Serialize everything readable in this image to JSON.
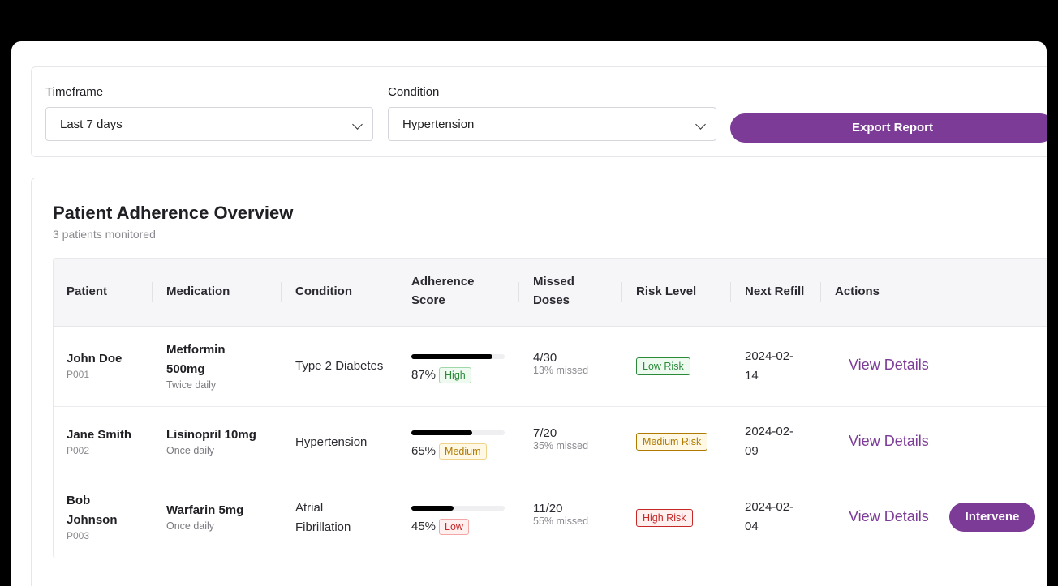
{
  "filters": {
    "timeframe_label": "Timeframe",
    "timeframe_value": "Last 7 days",
    "condition_label": "Condition",
    "condition_value": "Hypertension",
    "export_label": "Export Report"
  },
  "overview": {
    "title": "Patient Adherence Overview",
    "subtitle": "3 patients monitored"
  },
  "table": {
    "headers": {
      "patient": "Patient",
      "medication": "Medication",
      "condition": "Condition",
      "adherence_1": "Adherence",
      "adherence_2": "Score",
      "missed_1": "Missed",
      "missed_2": "Doses",
      "risk": "Risk Level",
      "refill": "Next Refill",
      "actions": "Actions"
    },
    "rows": [
      {
        "name_1": "John Doe",
        "name_2": "",
        "id": "P001",
        "med_1": "Metformin",
        "med_2": "500mg",
        "freq": "Twice daily",
        "cond_1": "Type 2 Diabetes",
        "cond_2": "",
        "score": "87%",
        "score_fraction": 0.87,
        "score_badge": "High",
        "missed": "4/30",
        "missed_sub": "13% missed",
        "risk": "Low Risk",
        "refill_1": "2024-02-",
        "refill_2": "14",
        "view": "View Details"
      },
      {
        "name_1": "Jane Smith",
        "name_2": "",
        "id": "P002",
        "med_1": "Lisinopril 10mg",
        "med_2": "",
        "freq": "Once daily",
        "cond_1": "Hypertension",
        "cond_2": "",
        "score": "65%",
        "score_fraction": 0.65,
        "score_badge": "Medium",
        "missed": "7/20",
        "missed_sub": "35% missed",
        "risk": "Medium Risk",
        "refill_1": "2024-02-",
        "refill_2": "09",
        "view": "View Details"
      },
      {
        "name_1": "Bob",
        "name_2": "Johnson",
        "id": "P003",
        "med_1": "Warfarin 5mg",
        "med_2": "",
        "freq": "Once daily",
        "cond_1": "Atrial",
        "cond_2": "Fibrillation",
        "score": "45%",
        "score_fraction": 0.45,
        "score_badge": "Low",
        "missed": "11/20",
        "missed_sub": "55% missed",
        "risk": "High Risk",
        "refill_1": "2024-02-",
        "refill_2": "04",
        "view": "View Details",
        "intervene": "Intervene"
      }
    ]
  },
  "colors": {
    "accent": "#7c3b96",
    "bar": "#000000",
    "high": "#2a8a3a",
    "medium": "#b07a00",
    "low": "#c62828"
  }
}
